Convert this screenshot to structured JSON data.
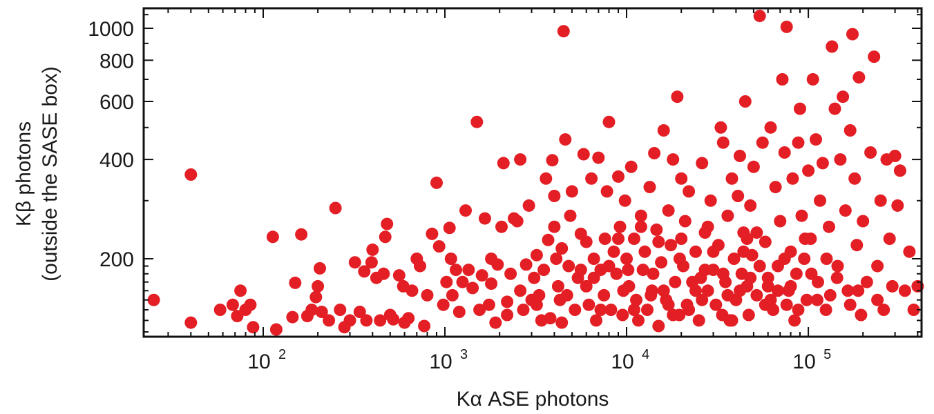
{
  "chart_data": {
    "type": "scatter",
    "title": "",
    "xlabel": "Kα ASE photons",
    "ylabel_line1": "Kβ photons",
    "ylabel_line2": "(outside the SASE box)",
    "xscale": "log",
    "yscale": "log",
    "xlim": [
      22,
      420000
    ],
    "ylim": [
      116,
      1150
    ],
    "x_tick_labels": [
      {
        "value": 100,
        "base": "10",
        "exp": "2"
      },
      {
        "value": 1000,
        "base": "10",
        "exp": "3"
      },
      {
        "value": 10000,
        "base": "10",
        "exp": "4"
      },
      {
        "value": 100000,
        "base": "10",
        "exp": "5"
      }
    ],
    "y_tick_labels": [
      {
        "value": 200,
        "label": "200"
      },
      {
        "value": 400,
        "label": "400"
      },
      {
        "value": 600,
        "label": "600"
      },
      {
        "value": 800,
        "label": "800"
      },
      {
        "value": 1000,
        "label": "1000"
      }
    ],
    "grid": false,
    "marker_color": "#e31e24",
    "points": [
      [
        25,
        150
      ],
      [
        40,
        128
      ],
      [
        40,
        360
      ],
      [
        58,
        140
      ],
      [
        68,
        145
      ],
      [
        72,
        134
      ],
      [
        75,
        160
      ],
      [
        80,
        140
      ],
      [
        85,
        145
      ],
      [
        88,
        124
      ],
      [
        113,
        233
      ],
      [
        118,
        122
      ],
      [
        145,
        133
      ],
      [
        150,
        169
      ],
      [
        162,
        237
      ],
      [
        175,
        134
      ],
      [
        185,
        140
      ],
      [
        195,
        153
      ],
      [
        200,
        165
      ],
      [
        205,
        187
      ],
      [
        210,
        138
      ],
      [
        230,
        130
      ],
      [
        250,
        285
      ],
      [
        265,
        140
      ],
      [
        280,
        124
      ],
      [
        300,
        130
      ],
      [
        320,
        195
      ],
      [
        340,
        138
      ],
      [
        360,
        183
      ],
      [
        370,
        130
      ],
      [
        395,
        195
      ],
      [
        400,
        213
      ],
      [
        420,
        175
      ],
      [
        440,
        130
      ],
      [
        460,
        180
      ],
      [
        470,
        233
      ],
      [
        480,
        255
      ],
      [
        500,
        135
      ],
      [
        520,
        131
      ],
      [
        560,
        178
      ],
      [
        590,
        165
      ],
      [
        600,
        128
      ],
      [
        630,
        132
      ],
      [
        660,
        160
      ],
      [
        700,
        200
      ],
      [
        730,
        190
      ],
      [
        770,
        125
      ],
      [
        800,
        155
      ],
      [
        850,
        238
      ],
      [
        900,
        340
      ],
      [
        930,
        218
      ],
      [
        980,
        145
      ],
      [
        1020,
        170
      ],
      [
        1060,
        248
      ],
      [
        1080,
        200
      ],
      [
        1100,
        155
      ],
      [
        1150,
        185
      ],
      [
        1200,
        138
      ],
      [
        1250,
        170
      ],
      [
        1300,
        280
      ],
      [
        1350,
        185
      ],
      [
        1420,
        163
      ],
      [
        1500,
        520
      ],
      [
        1550,
        140
      ],
      [
        1600,
        178
      ],
      [
        1660,
        265
      ],
      [
        1750,
        145
      ],
      [
        1800,
        168
      ],
      [
        1900,
        128
      ],
      [
        1950,
        192
      ],
      [
        2050,
        250
      ],
      [
        2100,
        390
      ],
      [
        2200,
        148
      ],
      [
        2300,
        180
      ],
      [
        2400,
        265
      ],
      [
        2500,
        260
      ],
      [
        2600,
        400
      ],
      [
        2700,
        140
      ],
      [
        2800,
        192
      ],
      [
        2900,
        290
      ],
      [
        3000,
        150
      ],
      [
        3100,
        175
      ],
      [
        3200,
        205
      ],
      [
        3300,
        155
      ],
      [
        3400,
        130
      ],
      [
        3500,
        185
      ],
      [
        3600,
        350
      ],
      [
        3700,
        228
      ],
      [
        3800,
        132
      ],
      [
        3900,
        398
      ],
      [
        4000,
        310
      ],
      [
        4100,
        200
      ],
      [
        4200,
        165
      ],
      [
        4300,
        150
      ],
      [
        4400,
        128
      ],
      [
        4500,
        980
      ],
      [
        4600,
        460
      ],
      [
        4700,
        155
      ],
      [
        4800,
        190
      ],
      [
        4900,
        270
      ],
      [
        5000,
        320
      ],
      [
        5200,
        140
      ],
      [
        5400,
        175
      ],
      [
        5600,
        238
      ],
      [
        5800,
        415
      ],
      [
        6000,
        165
      ],
      [
        6200,
        145
      ],
      [
        6400,
        350
      ],
      [
        6600,
        200
      ],
      [
        6800,
        130
      ],
      [
        7000,
        405
      ],
      [
        7200,
        185
      ],
      [
        7500,
        155
      ],
      [
        7800,
        320
      ],
      [
        8000,
        520
      ],
      [
        8200,
        140
      ],
      [
        8500,
        210
      ],
      [
        8800,
        180
      ],
      [
        9000,
        355
      ],
      [
        9200,
        250
      ],
      [
        9500,
        135
      ],
      [
        9800,
        300
      ],
      [
        10000,
        200
      ],
      [
        10300,
        165
      ],
      [
        10600,
        380
      ],
      [
        11000,
        230
      ],
      [
        11300,
        150
      ],
      [
        11600,
        130
      ],
      [
        12000,
        270
      ],
      [
        12300,
        185
      ],
      [
        12600,
        210
      ],
      [
        13000,
        140
      ],
      [
        13400,
        330
      ],
      [
        13800,
        160
      ],
      [
        14200,
        418
      ],
      [
        14600,
        245
      ],
      [
        15000,
        125
      ],
      [
        15500,
        195
      ],
      [
        16000,
        490
      ],
      [
        16500,
        150
      ],
      [
        17000,
        280
      ],
      [
        17500,
        220
      ],
      [
        18000,
        400
      ],
      [
        18500,
        170
      ],
      [
        19000,
        620
      ],
      [
        19500,
        135
      ],
      [
        20000,
        350
      ],
      [
        20500,
        190
      ],
      [
        21000,
        260
      ],
      [
        21500,
        145
      ],
      [
        22000,
        320
      ],
      [
        23000,
        170
      ],
      [
        24000,
        210
      ],
      [
        25000,
        130
      ],
      [
        26000,
        390
      ],
      [
        27000,
        240
      ],
      [
        28000,
        160
      ],
      [
        29000,
        300
      ],
      [
        30000,
        185
      ],
      [
        31000,
        145
      ],
      [
        32000,
        220
      ],
      [
        33000,
        500
      ],
      [
        34000,
        450
      ],
      [
        35000,
        170
      ],
      [
        36000,
        270
      ],
      [
        37000,
        130
      ],
      [
        38000,
        350
      ],
      [
        39000,
        200
      ],
      [
        40000,
        150
      ],
      [
        41000,
        310
      ],
      [
        42000,
        410
      ],
      [
        43000,
        180
      ],
      [
        44000,
        240
      ],
      [
        45000,
        600
      ],
      [
        46000,
        165
      ],
      [
        47000,
        135
      ],
      [
        48000,
        290
      ],
      [
        49000,
        205
      ],
      [
        50000,
        380
      ],
      [
        52000,
        155
      ],
      [
        54000,
        1090
      ],
      [
        56000,
        450
      ],
      [
        58000,
        225
      ],
      [
        60000,
        175
      ],
      [
        62000,
        500
      ],
      [
        64000,
        140
      ],
      [
        66000,
        330
      ],
      [
        68000,
        190
      ],
      [
        70000,
        260
      ],
      [
        72000,
        700
      ],
      [
        74000,
        420
      ],
      [
        76000,
        1010
      ],
      [
        78000,
        160
      ],
      [
        80000,
        210
      ],
      [
        82000,
        350
      ],
      [
        84000,
        130
      ],
      [
        86000,
        180
      ],
      [
        88000,
        450
      ],
      [
        90000,
        570
      ],
      [
        92000,
        270
      ],
      [
        95000,
        200
      ],
      [
        98000,
        150
      ],
      [
        100000,
        370
      ],
      [
        103000,
        230
      ],
      [
        106000,
        700
      ],
      [
        110000,
        460
      ],
      [
        113000,
        170
      ],
      [
        116000,
        300
      ],
      [
        120000,
        390
      ],
      [
        125000,
        140
      ],
      [
        130000,
        250
      ],
      [
        135000,
        880
      ],
      [
        140000,
        570
      ],
      [
        145000,
        190
      ],
      [
        150000,
        400
      ],
      [
        155000,
        620
      ],
      [
        160000,
        280
      ],
      [
        165000,
        160
      ],
      [
        170000,
        490
      ],
      [
        175000,
        960
      ],
      [
        180000,
        350
      ],
      [
        185000,
        220
      ],
      [
        190000,
        710
      ],
      [
        195000,
        135
      ],
      [
        200000,
        260
      ],
      [
        210000,
        170
      ],
      [
        220000,
        420
      ],
      [
        230000,
        820
      ],
      [
        240000,
        190
      ],
      [
        250000,
        300
      ],
      [
        260000,
        140
      ],
      [
        270000,
        400
      ],
      [
        280000,
        230
      ],
      [
        290000,
        165
      ],
      [
        300000,
        410
      ],
      [
        310000,
        290
      ],
      [
        320000,
        370
      ],
      [
        340000,
        160
      ],
      [
        360000,
        210
      ],
      [
        380000,
        140
      ],
      [
        400000,
        165
      ],
      [
        4000,
        250
      ],
      [
        6000,
        225
      ],
      [
        8000,
        190
      ],
      [
        12000,
        250
      ],
      [
        16000,
        160
      ],
      [
        20000,
        230
      ],
      [
        26000,
        150
      ],
      [
        34000,
        180
      ],
      [
        44000,
        210
      ],
      [
        58000,
        145
      ],
      [
        74000,
        200
      ],
      [
        2600,
        160
      ],
      [
        3200,
        145
      ],
      [
        5600,
        185
      ],
      [
        7200,
        140
      ],
      [
        9600,
        160
      ],
      [
        14000,
        180
      ],
      [
        18000,
        135
      ],
      [
        24000,
        160
      ],
      [
        30000,
        210
      ],
      [
        38000,
        130
      ],
      [
        48000,
        175
      ],
      [
        62000,
        150
      ],
      [
        80000,
        165
      ],
      [
        104000,
        180
      ],
      [
        132000,
        155
      ],
      [
        170000,
        145
      ],
      [
        7600,
        230
      ],
      [
        11000,
        140
      ],
      [
        15000,
        225
      ],
      [
        22000,
        140
      ],
      [
        28000,
        250
      ],
      [
        36000,
        155
      ],
      [
        46000,
        230
      ],
      [
        60000,
        165
      ],
      [
        76000,
        145
      ],
      [
        96000,
        230
      ],
      [
        126000,
        200
      ],
      [
        1800,
        200
      ],
      [
        2200,
        135
      ],
      [
        4400,
        215
      ],
      [
        6600,
        175
      ],
      [
        10200,
        185
      ],
      [
        13600,
        155
      ],
      [
        19600,
        200
      ],
      [
        25600,
        175
      ],
      [
        33600,
        135
      ],
      [
        42000,
        160
      ],
      [
        54000,
        190
      ],
      [
        68000,
        160
      ],
      [
        88000,
        140
      ],
      [
        112000,
        150
      ],
      [
        144000,
        175
      ],
      [
        188000,
        160
      ],
      [
        240000,
        150
      ],
      [
        9000,
        230
      ],
      [
        17000,
        145
      ],
      [
        27000,
        185
      ],
      [
        52000,
        240
      ]
    ]
  }
}
